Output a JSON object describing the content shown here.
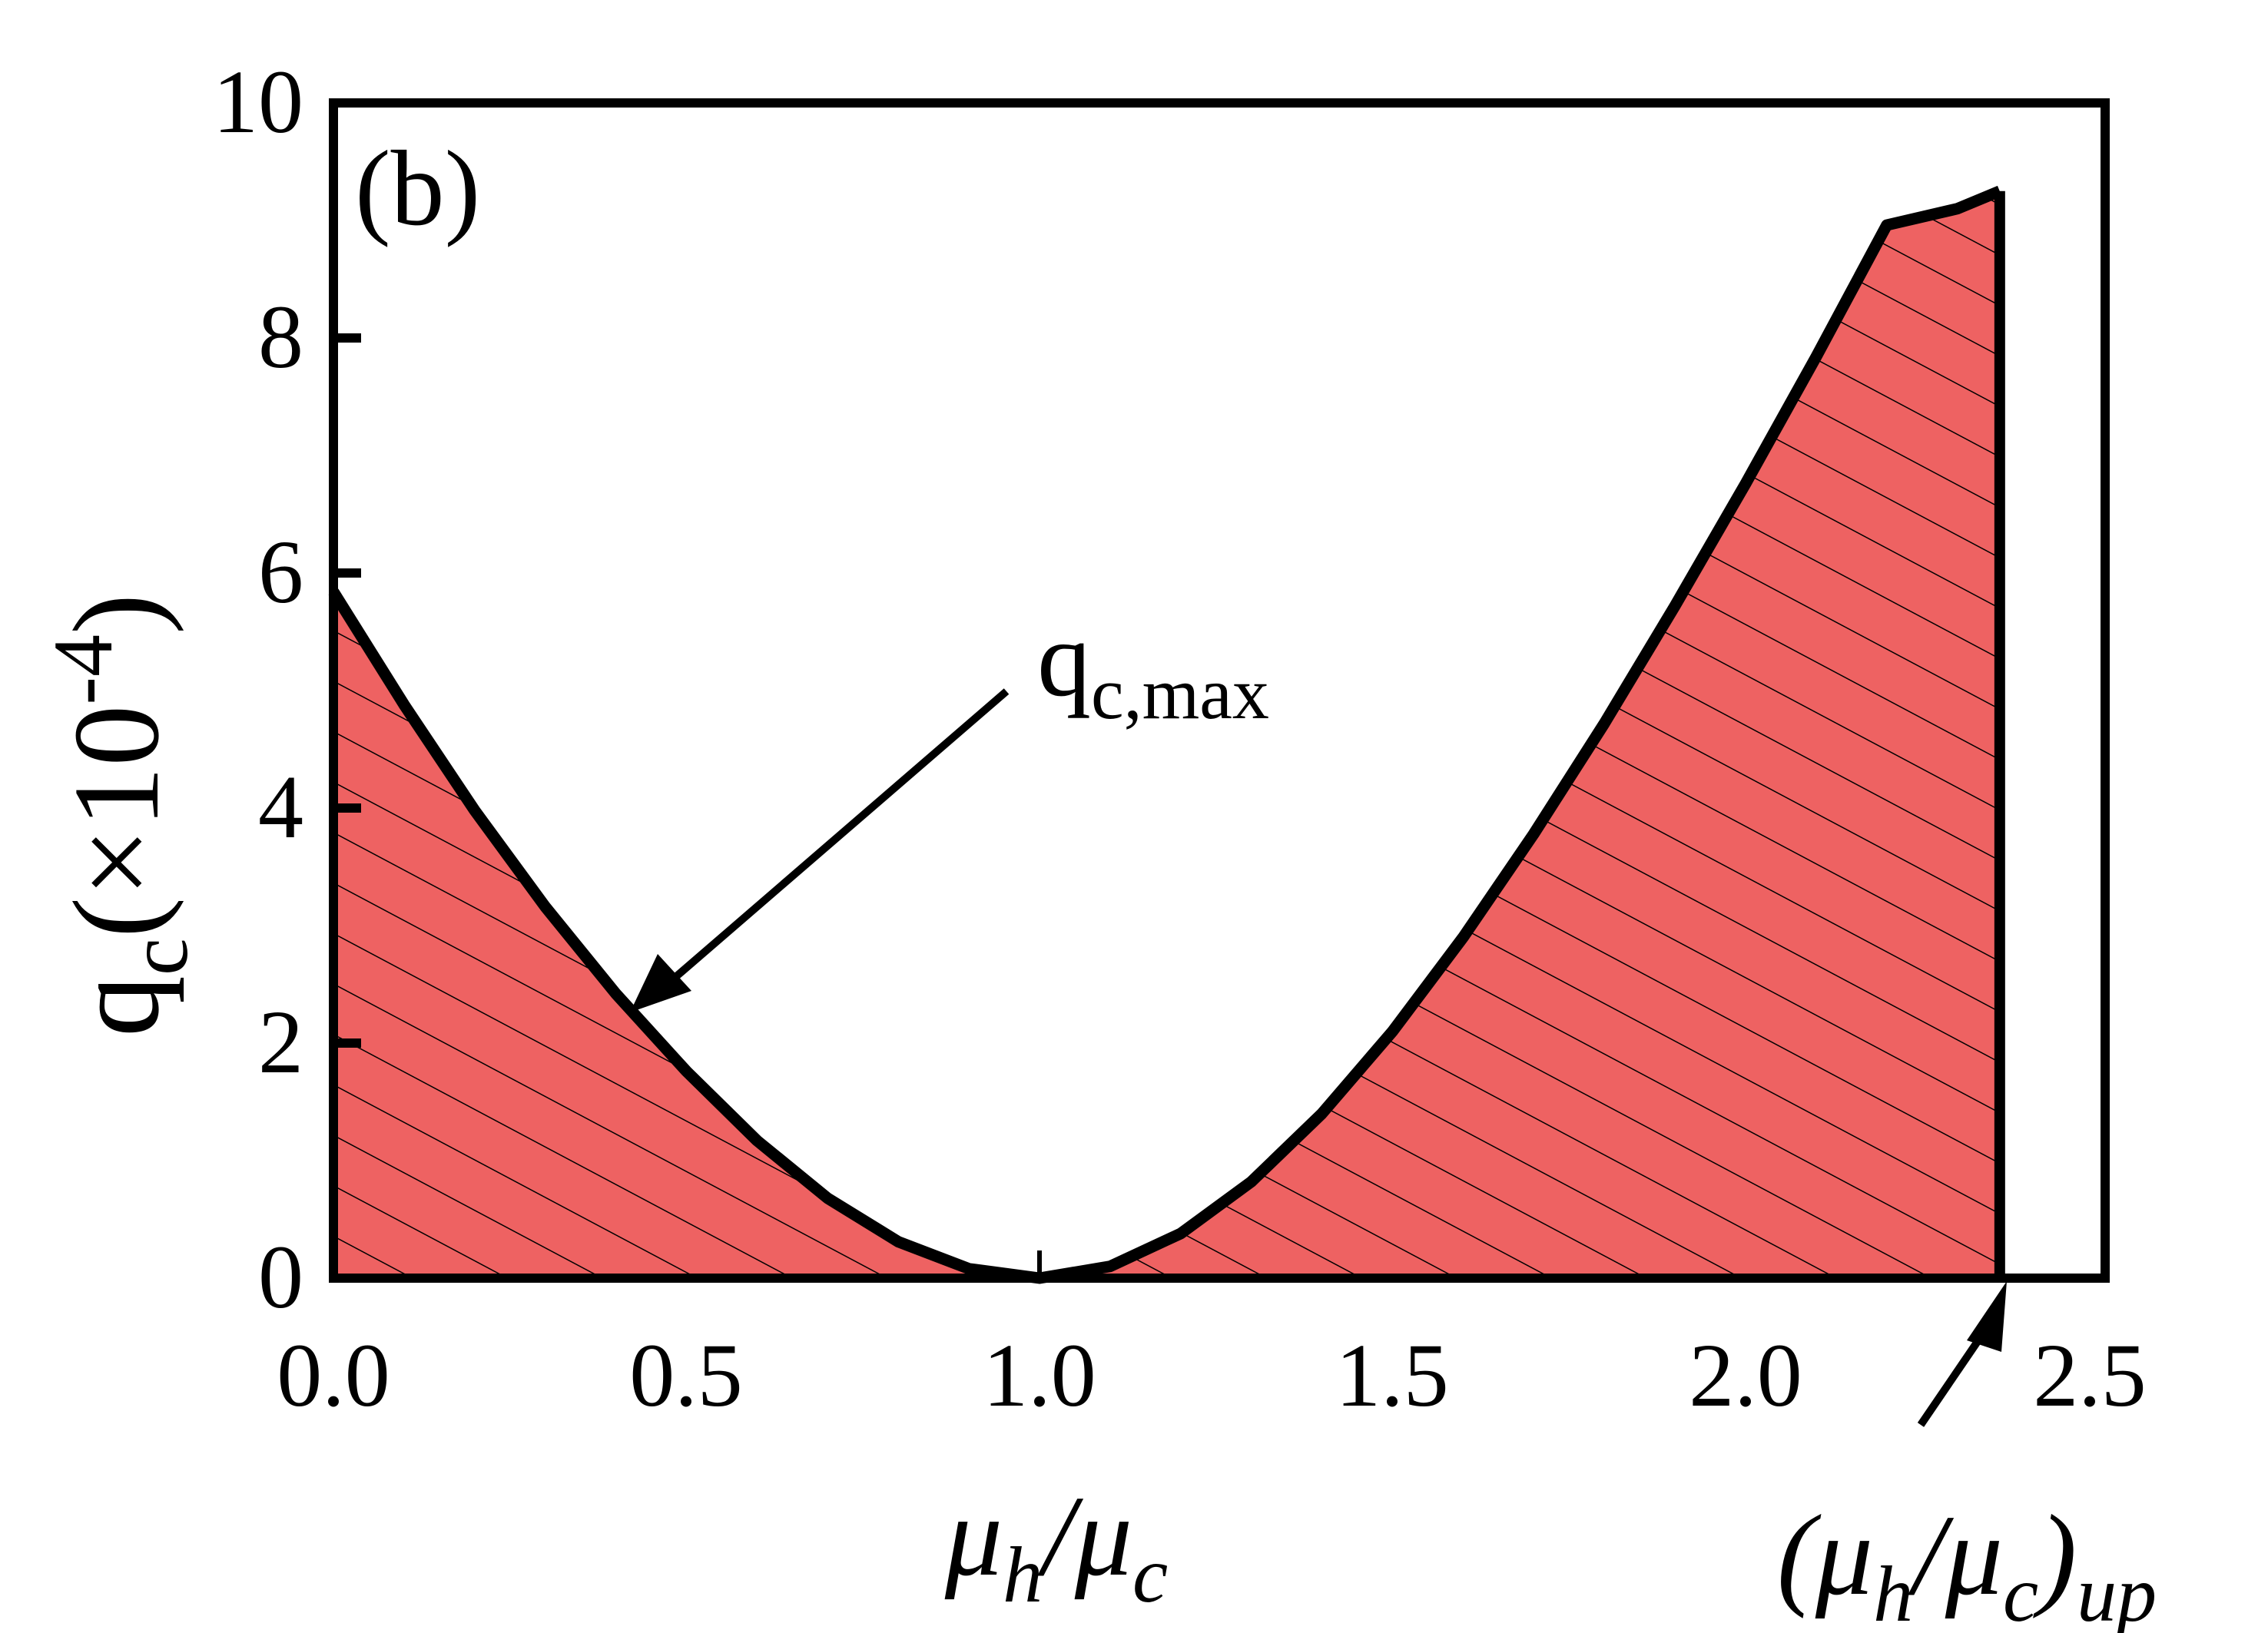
{
  "panel_label": "(b)",
  "annotation": {
    "main": "q",
    "sub": "c,max"
  },
  "xlabel": {
    "mu1": "μ",
    "sub1": "h",
    "slash": "/",
    "mu2": "μ",
    "sub2": "c"
  },
  "uplabel": {
    "open": "(",
    "mu1": "μ",
    "sub1": "h",
    "slash": "/",
    "mu2": "μ",
    "sub2": "c",
    "close": ")",
    "sub3": "up"
  },
  "ylabel": {
    "q": "q",
    "sub": "c",
    "rest": "(×10",
    "exp": "-4",
    "close": ")"
  },
  "colors": {
    "fill": "#EE6262",
    "line": "#000000",
    "hatch": "#000000"
  },
  "chart_data": {
    "type": "area",
    "title": "",
    "panel": "(b)",
    "xlabel": "μh/μc",
    "ylabel": "qc (×10^-4)",
    "xlim": [
      0.0,
      2.52
    ],
    "ylim": [
      0,
      10
    ],
    "xticks": [
      "0.0",
      "0.5",
      "1.0",
      "1.5",
      "2.0",
      "2.5"
    ],
    "yticks": [
      "0",
      "2",
      "4",
      "6",
      "8",
      "10"
    ],
    "grid": false,
    "legend": null,
    "series": [
      {
        "name": "qc,max",
        "style": "thick black line, red hatched fill below",
        "x": [
          0.0,
          0.1,
          0.2,
          0.3,
          0.4,
          0.5,
          0.6,
          0.7,
          0.8,
          0.9,
          1.0,
          1.1,
          1.2,
          1.3,
          1.4,
          1.5,
          1.6,
          1.7,
          1.8,
          1.9,
          2.0,
          2.1,
          2.2,
          2.3,
          2.36
        ],
        "values": [
          5.84,
          4.88,
          3.98,
          3.16,
          2.42,
          1.76,
          1.17,
          0.68,
          0.31,
          0.08,
          0.0,
          0.1,
          0.38,
          0.82,
          1.4,
          2.1,
          2.9,
          3.78,
          4.72,
          5.72,
          6.76,
          7.84,
          8.96,
          9.1,
          9.25
        ]
      }
    ],
    "annotations": [
      {
        "text": "qc,max",
        "arrow_to": [
          0.42,
          2.25
        ]
      },
      {
        "text": "(μh/μc)up",
        "arrow_to": [
          2.36,
          0
        ],
        "value": 2.36
      }
    ],
    "upper_limit_line_x": 2.36
  }
}
